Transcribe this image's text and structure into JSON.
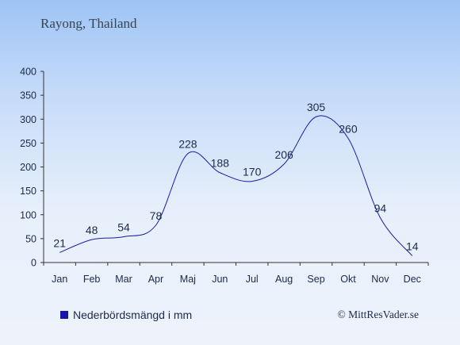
{
  "colors": {
    "line": "#1a1aa6",
    "legend_swatch": "#1616a8",
    "text": "#1c2a4a"
  },
  "credit": "© MittResVader.se",
  "chart_data": {
    "type": "line",
    "title": "Rayong, Thailand",
    "categories": [
      "Jan",
      "Feb",
      "Mar",
      "Apr",
      "Maj",
      "Jun",
      "Jul",
      "Aug",
      "Sep",
      "Okt",
      "Nov",
      "Dec"
    ],
    "series": [
      {
        "name": "Nederbördsmängd i mm",
        "values": [
          21,
          48,
          54,
          78,
          228,
          188,
          170,
          206,
          305,
          260,
          94,
          14
        ]
      }
    ],
    "ylim": [
      0,
      400
    ],
    "yticks": [
      0,
      50,
      100,
      150,
      200,
      250,
      300,
      350,
      400
    ],
    "grid": false,
    "legend_position": "bottom-left"
  }
}
